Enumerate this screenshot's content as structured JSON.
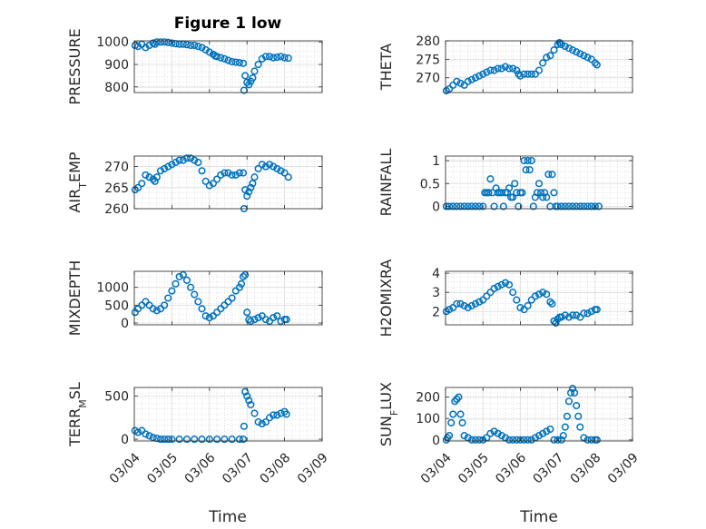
{
  "chart_data": [
    {
      "type": "scatter",
      "title": "Figure 1 low",
      "ylabel": "PRESSURE",
      "ylim": [
        775,
        1005
      ],
      "yticks": [
        "800",
        "900",
        "1000"
      ],
      "x_is_date": true,
      "xlim": [
        "03/04",
        "03/09"
      ],
      "xticks": [
        "03/04",
        "03/05",
        "03/06",
        "03/07",
        "03/08",
        "03/09"
      ],
      "grid": true,
      "series": [
        {
          "x": [
            0.02,
            0.1,
            0.2,
            0.3,
            0.4,
            0.5,
            0.55,
            0.6,
            0.7,
            0.8,
            0.9,
            1.0,
            1.1,
            1.2,
            1.3,
            1.4,
            1.5,
            1.6,
            1.7,
            1.8,
            1.9,
            2.0,
            2.1,
            2.15,
            2.2,
            2.3,
            2.4,
            2.5,
            2.6,
            2.7,
            2.8,
            2.9,
            2.92,
            2.95,
            3.0,
            3.05,
            3.1,
            3.15,
            3.2,
            3.3,
            3.4,
            3.5,
            3.6,
            3.7,
            3.8,
            3.9,
            4.0,
            4.1
          ],
          "y": [
            985,
            980,
            990,
            975,
            985,
            995,
            990,
            1000,
            1000,
            1000,
            998,
            995,
            992,
            990,
            990,
            988,
            985,
            985,
            980,
            975,
            965,
            955,
            945,
            938,
            935,
            930,
            925,
            918,
            912,
            910,
            908,
            905,
            785,
            850,
            820,
            810,
            825,
            840,
            870,
            900,
            925,
            935,
            935,
            930,
            932,
            935,
            930,
            928
          ]
        }
      ]
    },
    {
      "type": "scatter",
      "ylabel": "THETA",
      "ylim": [
        266,
        280
      ],
      "yticks": [
        "270",
        "275",
        "280"
      ],
      "x_is_date": true,
      "xlim": [
        "03/04",
        "03/09"
      ],
      "xticks": [
        "03/04",
        "03/05",
        "03/06",
        "03/07",
        "03/08",
        "03/09"
      ],
      "grid": true,
      "series": [
        {
          "x": [
            0.02,
            0.1,
            0.2,
            0.3,
            0.4,
            0.5,
            0.6,
            0.7,
            0.8,
            0.9,
            1.0,
            1.1,
            1.2,
            1.3,
            1.4,
            1.5,
            1.6,
            1.7,
            1.8,
            1.9,
            1.95,
            2.0,
            2.1,
            2.2,
            2.3,
            2.4,
            2.5,
            2.6,
            2.7,
            2.8,
            2.9,
            3.0,
            3.05,
            3.1,
            3.2,
            3.3,
            3.4,
            3.5,
            3.6,
            3.7,
            3.8,
            3.9,
            4.0,
            4.05
          ],
          "y": [
            266.5,
            267,
            268,
            269,
            268.5,
            268,
            269,
            269.5,
            270,
            270.5,
            271,
            271.5,
            272,
            272,
            272.5,
            272.5,
            273,
            272.5,
            272.5,
            272,
            271,
            270.5,
            271,
            271,
            271,
            271,
            272,
            274,
            275.5,
            276,
            277.5,
            279,
            279.5,
            279,
            278.5,
            278,
            277.5,
            277,
            276.5,
            276,
            275.5,
            275,
            274,
            273.5
          ]
        }
      ]
    },
    {
      "type": "scatter",
      "ylabel": "AIR_TEMP",
      "ylim": [
        260,
        272.5
      ],
      "yticks": [
        "260",
        "265",
        "270"
      ],
      "x_is_date": true,
      "xlim": [
        "03/04",
        "03/09"
      ],
      "xticks": [
        "03/04",
        "03/05",
        "03/06",
        "03/07",
        "03/08",
        "03/09"
      ],
      "grid": true,
      "series": [
        {
          "x": [
            0.02,
            0.1,
            0.2,
            0.3,
            0.4,
            0.5,
            0.55,
            0.6,
            0.7,
            0.8,
            0.9,
            1.0,
            1.1,
            1.2,
            1.3,
            1.4,
            1.5,
            1.6,
            1.7,
            1.8,
            1.9,
            2.0,
            2.1,
            2.2,
            2.3,
            2.4,
            2.5,
            2.6,
            2.7,
            2.8,
            2.9,
            2.92,
            2.95,
            3.0,
            3.05,
            3.1,
            3.15,
            3.2,
            3.3,
            3.4,
            3.5,
            3.6,
            3.7,
            3.8,
            3.9,
            4.0,
            4.1
          ],
          "y": [
            264.5,
            265,
            266,
            268,
            267.5,
            267,
            266.5,
            267.5,
            269,
            269.5,
            270,
            270.5,
            271,
            271.5,
            271.5,
            272,
            272,
            271.5,
            271,
            269,
            266.5,
            265.5,
            266,
            267,
            268,
            268.5,
            268.5,
            268,
            268,
            268.5,
            268.5,
            260,
            264.5,
            263,
            264,
            265,
            266,
            267.5,
            269.5,
            270.5,
            270,
            270.5,
            270,
            269.5,
            269,
            268.5,
            267.5
          ]
        }
      ]
    },
    {
      "type": "scatter",
      "ylabel": "RAINFALL",
      "ylim": [
        -0.05,
        1.1
      ],
      "yticks": [
        "0",
        "0.5",
        "1"
      ],
      "x_is_date": true,
      "xlim": [
        "03/04",
        "03/09"
      ],
      "xticks": [
        "03/04",
        "03/05",
        "03/06",
        "03/07",
        "03/08",
        "03/09"
      ],
      "grid": true,
      "series": [
        {
          "x": [
            0.02,
            0.1,
            0.2,
            0.3,
            0.4,
            0.5,
            0.6,
            0.7,
            0.8,
            0.9,
            1.0,
            1.05,
            1.1,
            1.15,
            1.2,
            1.25,
            1.3,
            1.35,
            1.4,
            1.45,
            1.5,
            1.55,
            1.6,
            1.65,
            1.7,
            1.75,
            1.8,
            1.85,
            1.9,
            1.95,
            2.0,
            2.05,
            2.1,
            2.15,
            2.2,
            2.25,
            2.3,
            2.35,
            2.4,
            2.45,
            2.5,
            2.55,
            2.6,
            2.65,
            2.7,
            2.75,
            2.8,
            2.85,
            2.9,
            2.95,
            3.0,
            3.1,
            3.2,
            3.3,
            3.4,
            3.5,
            3.6,
            3.7,
            3.8,
            3.9,
            4.0,
            4.1
          ],
          "y": [
            0,
            0,
            0,
            0,
            0,
            0,
            0,
            0,
            0,
            0,
            0,
            0.3,
            0.3,
            0.3,
            0.6,
            0.3,
            0,
            0.4,
            0.3,
            0.3,
            0.3,
            0,
            0.3,
            0.3,
            0.4,
            0.2,
            0.2,
            0.5,
            0.3,
            0,
            0.3,
            0.3,
            1,
            0.8,
            1,
            0.8,
            1,
            0,
            0.2,
            0.3,
            0.5,
            0.3,
            0.2,
            0.3,
            0.2,
            0.7,
            0,
            0.7,
            0.3,
            0,
            0,
            0,
            0,
            0,
            0,
            0,
            0,
            0,
            0,
            0,
            0,
            0
          ]
        }
      ]
    },
    {
      "type": "scatter",
      "ylabel": "MIXDEPTH",
      "ylim": [
        -50,
        1450
      ],
      "yticks": [
        "0",
        "500",
        "1000"
      ],
      "x_is_date": true,
      "xlim": [
        "03/04",
        "03/09"
      ],
      "xticks": [
        "03/04",
        "03/05",
        "03/06",
        "03/07",
        "03/08",
        "03/09"
      ],
      "grid": true,
      "series": [
        {
          "x": [
            0.02,
            0.1,
            0.2,
            0.3,
            0.4,
            0.5,
            0.6,
            0.7,
            0.8,
            0.9,
            1.0,
            1.1,
            1.2,
            1.3,
            1.4,
            1.5,
            1.6,
            1.7,
            1.8,
            1.9,
            2.0,
            2.1,
            2.2,
            2.3,
            2.4,
            2.5,
            2.6,
            2.7,
            2.8,
            2.85,
            2.9,
            2.95,
            3.0,
            3.05,
            3.1,
            3.2,
            3.3,
            3.4,
            3.5,
            3.6,
            3.7,
            3.8,
            3.9,
            4.0,
            4.05
          ],
          "y": [
            300,
            400,
            500,
            600,
            500,
            400,
            350,
            400,
            500,
            700,
            900,
            1100,
            1300,
            1350,
            1200,
            1000,
            800,
            600,
            400,
            200,
            150,
            200,
            300,
            400,
            500,
            600,
            700,
            900,
            1000,
            1100,
            1300,
            1350,
            300,
            100,
            50,
            100,
            150,
            200,
            100,
            50,
            150,
            200,
            50,
            100,
            100
          ]
        }
      ]
    },
    {
      "type": "scatter",
      "ylabel": "H2OMIXRA",
      "ylim": [
        1.3,
        4.1
      ],
      "yticks": [
        "2",
        "3",
        "4"
      ],
      "x_is_date": true,
      "xlim": [
        "03/04",
        "03/09"
      ],
      "xticks": [
        "03/04",
        "03/05",
        "03/06",
        "03/07",
        "03/08",
        "03/09"
      ],
      "grid": true,
      "series": [
        {
          "x": [
            0.02,
            0.1,
            0.2,
            0.3,
            0.4,
            0.5,
            0.6,
            0.7,
            0.8,
            0.9,
            1.0,
            1.1,
            1.2,
            1.3,
            1.4,
            1.5,
            1.6,
            1.7,
            1.8,
            1.9,
            2.0,
            2.1,
            2.2,
            2.3,
            2.4,
            2.5,
            2.6,
            2.7,
            2.8,
            2.85,
            2.9,
            2.95,
            3.0,
            3.05,
            3.1,
            3.2,
            3.3,
            3.4,
            3.5,
            3.6,
            3.7,
            3.8,
            3.9,
            4.0,
            4.05
          ],
          "y": [
            2,
            2.1,
            2.2,
            2.4,
            2.4,
            2.3,
            2.2,
            2.3,
            2.4,
            2.5,
            2.6,
            2.8,
            3,
            3.2,
            3.3,
            3.4,
            3.5,
            3.4,
            3,
            2.6,
            2.2,
            2.1,
            2.3,
            2.6,
            2.8,
            2.9,
            3,
            2.9,
            2.5,
            2.4,
            1.5,
            1.4,
            1.6,
            1.7,
            1.7,
            1.8,
            1.7,
            1.8,
            1.8,
            1.7,
            1.9,
            1.9,
            2,
            2.1,
            2.1
          ]
        }
      ]
    },
    {
      "type": "scatter",
      "ylabel": "TERR_MSL",
      "ylim": [
        -20,
        600
      ],
      "yticks": [
        "0",
        "500"
      ],
      "x_is_date": true,
      "xlim": [
        "03/04",
        "03/09"
      ],
      "xticks": [
        "03/04",
        "03/05",
        "03/06",
        "03/07",
        "03/08",
        "03/09"
      ],
      "grid": true,
      "series": [
        {
          "x": [
            0.02,
            0.1,
            0.2,
            0.3,
            0.4,
            0.5,
            0.6,
            0.7,
            0.8,
            0.9,
            1.0,
            1.2,
            1.4,
            1.6,
            1.8,
            2.0,
            2.2,
            2.4,
            2.6,
            2.8,
            2.9,
            2.92,
            2.95,
            3.0,
            3.05,
            3.1,
            3.2,
            3.3,
            3.4,
            3.5,
            3.6,
            3.7,
            3.8,
            3.9,
            4.0,
            4.05
          ],
          "y": [
            100,
            80,
            100,
            60,
            40,
            20,
            10,
            0,
            0,
            0,
            0,
            0,
            0,
            0,
            0,
            0,
            0,
            0,
            0,
            0,
            0,
            150,
            550,
            500,
            450,
            400,
            300,
            200,
            180,
            200,
            250,
            280,
            280,
            300,
            320,
            290
          ]
        }
      ]
    },
    {
      "type": "scatter",
      "ylabel": "SUN_FLUX",
      "ylim": [
        -5,
        245
      ],
      "yticks": [
        "0",
        "100",
        "200"
      ],
      "x_is_date": true,
      "xlim": [
        "03/04",
        "03/09"
      ],
      "xticks": [
        "03/04",
        "03/05",
        "03/06",
        "03/07",
        "03/08",
        "03/09"
      ],
      "grid": true,
      "series": [
        {
          "x": [
            0.02,
            0.05,
            0.1,
            0.15,
            0.2,
            0.25,
            0.3,
            0.35,
            0.4,
            0.45,
            0.5,
            0.6,
            0.7,
            0.8,
            0.9,
            1.0,
            1.1,
            1.2,
            1.3,
            1.4,
            1.5,
            1.6,
            1.7,
            1.8,
            1.9,
            2.0,
            2.1,
            2.2,
            2.3,
            2.4,
            2.5,
            2.6,
            2.7,
            2.8,
            2.9,
            3.0,
            3.1,
            3.15,
            3.2,
            3.25,
            3.3,
            3.35,
            3.4,
            3.45,
            3.5,
            3.55,
            3.6,
            3.7,
            3.8,
            3.9,
            4.0,
            4.05
          ],
          "y": [
            0,
            10,
            20,
            80,
            120,
            180,
            190,
            200,
            120,
            80,
            20,
            10,
            0,
            0,
            0,
            0,
            10,
            30,
            40,
            30,
            20,
            10,
            0,
            0,
            0,
            0,
            0,
            0,
            0,
            10,
            20,
            30,
            40,
            50,
            0,
            0,
            0,
            20,
            60,
            110,
            180,
            220,
            240,
            220,
            160,
            110,
            60,
            10,
            0,
            0,
            0,
            0
          ]
        }
      ]
    }
  ],
  "xlabel": "Time",
  "marker_color": "#0072BD"
}
